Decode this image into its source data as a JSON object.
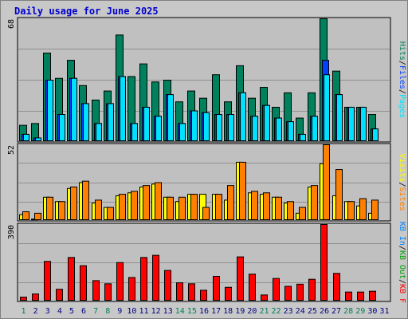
{
  "page": {
    "title": "Daily usage for June 2025"
  },
  "colors": {
    "frame_bg": "#c8c8c8",
    "plot_bg": "#c0c0c0",
    "grid": "#909090",
    "title": "#0000cc",
    "slash": "#000000",
    "hits": "#00805c",
    "files": "#0040ff",
    "pages": "#00e0ff",
    "visits": "#ffff00",
    "sites": "#ff8000",
    "kb_in": "#0080ff",
    "kb_out": "#00a000",
    "kb_f": "#ff0000",
    "day_weekday": "#000080",
    "day_weekend": "#00805c"
  },
  "chart_data": [
    {
      "type": "bar",
      "title": "Daily usage for June 2025",
      "y_max_label": "68",
      "ylim": [
        0,
        68
      ],
      "grid": true,
      "legend": [
        {
          "name": "Hits",
          "color": "hits"
        },
        {
          "name": "Files",
          "color": "files"
        },
        {
          "name": "Pages",
          "color": "pages"
        }
      ],
      "categories": [
        "1",
        "2",
        "3",
        "4",
        "5",
        "6",
        "7",
        "8",
        "9",
        "10",
        "11",
        "12",
        "13",
        "14",
        "15",
        "16",
        "17",
        "18",
        "19",
        "20",
        "21",
        "22",
        "23",
        "24",
        "25",
        "26",
        "27",
        "28",
        "29",
        "30",
        "31"
      ],
      "series": [
        {
          "name": "Hits",
          "values": [
            9,
            10,
            49,
            35,
            45,
            31,
            23,
            28,
            59,
            36,
            43,
            33,
            34,
            22,
            28,
            24,
            37,
            22,
            42,
            24,
            30,
            19,
            27,
            13,
            27,
            68,
            39,
            19,
            19,
            15,
            0
          ]
        },
        {
          "name": "Files",
          "values": [
            4,
            2,
            34,
            15,
            35,
            21,
            10,
            21,
            36,
            10,
            19,
            14,
            26,
            10,
            17,
            16,
            15,
            15,
            27,
            14,
            20,
            13,
            11,
            4,
            14,
            45,
            26,
            19,
            19,
            7,
            0
          ]
        },
        {
          "name": "Pages",
          "values": [
            4,
            2,
            34,
            15,
            35,
            21,
            10,
            21,
            36,
            10,
            19,
            14,
            26,
            10,
            17,
            16,
            15,
            15,
            27,
            14,
            20,
            13,
            11,
            4,
            14,
            37,
            26,
            19,
            19,
            7,
            0
          ]
        }
      ]
    },
    {
      "type": "bar",
      "y_max_label": "52",
      "ylim": [
        0,
        52
      ],
      "grid": true,
      "legend": [
        {
          "name": "Visits",
          "color": "visits"
        },
        {
          "name": "Sites",
          "color": "sites"
        }
      ],
      "categories": [
        "1",
        "2",
        "3",
        "4",
        "5",
        "6",
        "7",
        "8",
        "9",
        "10",
        "11",
        "12",
        "13",
        "14",
        "15",
        "16",
        "17",
        "18",
        "19",
        "20",
        "21",
        "22",
        "23",
        "24",
        "25",
        "26",
        "27",
        "28",
        "29",
        "30",
        "31"
      ],
      "series": [
        {
          "name": "Visits",
          "values": [
            4,
            1,
            16,
            13,
            22,
            26,
            12,
            9,
            17,
            19,
            23,
            25,
            16,
            13,
            18,
            18,
            18,
            14,
            40,
            19,
            18,
            16,
            12,
            5,
            23,
            39,
            17,
            13,
            10,
            5,
            0
          ]
        },
        {
          "name": "Sites",
          "values": [
            6,
            5,
            16,
            13,
            23,
            27,
            14,
            9,
            18,
            20,
            24,
            26,
            16,
            16,
            18,
            9,
            18,
            24,
            40,
            20,
            19,
            16,
            13,
            9,
            24,
            52,
            35,
            13,
            15,
            14,
            0
          ]
        }
      ]
    },
    {
      "type": "bar",
      "y_max_label": "390",
      "ylim": [
        0,
        390
      ],
      "grid": true,
      "legend": [
        {
          "name": "KB In",
          "color": "kb_in"
        },
        {
          "name": "KB Out",
          "color": "kb_out"
        },
        {
          "name": "KB F",
          "color": "kb_f"
        }
      ],
      "categories": [
        "1",
        "2",
        "3",
        "4",
        "5",
        "6",
        "7",
        "8",
        "9",
        "10",
        "11",
        "12",
        "13",
        "14",
        "15",
        "16",
        "17",
        "18",
        "19",
        "20",
        "21",
        "22",
        "23",
        "24",
        "25",
        "26",
        "27",
        "28",
        "29",
        "30",
        "31"
      ],
      "series": [
        {
          "name": "KB F",
          "values": [
            20,
            36,
            202,
            60,
            222,
            180,
            104,
            88,
            196,
            120,
            222,
            233,
            156,
            93,
            88,
            55,
            126,
            70,
            225,
            137,
            31,
            115,
            75,
            86,
            111,
            390,
            141,
            46,
            46,
            50,
            0
          ]
        }
      ]
    }
  ]
}
